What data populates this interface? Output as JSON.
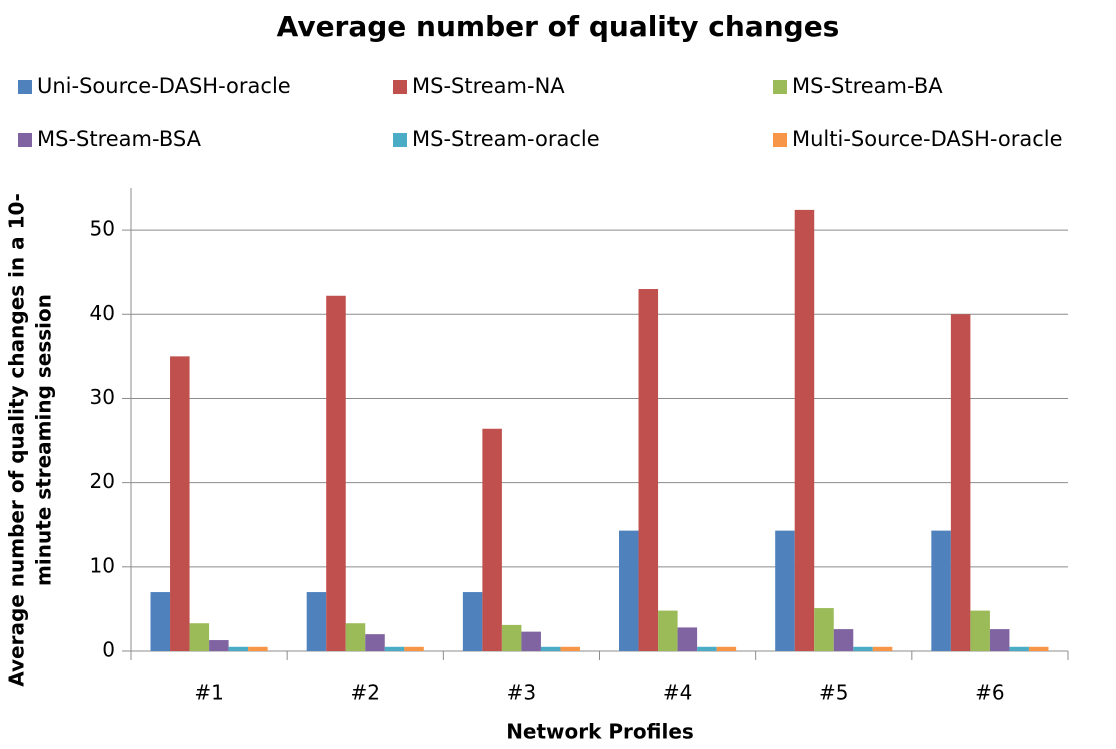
{
  "chart_data": {
    "type": "bar",
    "title": "Average number of quality changes",
    "xlabel": "Network Profiles",
    "ylabel": [
      "Average number of quality changes in a 10-",
      "minute streaming session"
    ],
    "categories": [
      "#1",
      "#2",
      "#3",
      "#4",
      "#5",
      "#6"
    ],
    "series": [
      {
        "name": "Uni-Source-DASH-oracle",
        "color": "#4f81bd",
        "values": [
          7,
          7,
          7,
          14.3,
          14.3,
          14.3
        ]
      },
      {
        "name": "MS-Stream-NA",
        "color": "#c0504d",
        "values": [
          35,
          42.2,
          26.4,
          43,
          52.4,
          40
        ]
      },
      {
        "name": "MS-Stream-BA",
        "color": "#9bbb59",
        "values": [
          3.3,
          3.3,
          3.1,
          4.8,
          5.1,
          4.8
        ]
      },
      {
        "name": "MS-Stream-BSA",
        "color": "#8064a2",
        "values": [
          1.3,
          2,
          2.3,
          2.8,
          2.6,
          2.6
        ]
      },
      {
        "name": "MS-Stream-oracle",
        "color": "#4bacc6",
        "values": [
          0.5,
          0.5,
          0.5,
          0.5,
          0.5,
          0.5
        ]
      },
      {
        "name": "Multi-Source-DASH-oracle",
        "color": "#f79646",
        "values": [
          0.5,
          0.5,
          0.5,
          0.5,
          0.5,
          0.5
        ]
      }
    ],
    "ylim": [
      0,
      55
    ],
    "yticks": [
      0,
      10,
      20,
      30,
      40,
      50
    ],
    "grid": true,
    "legend": "top"
  }
}
